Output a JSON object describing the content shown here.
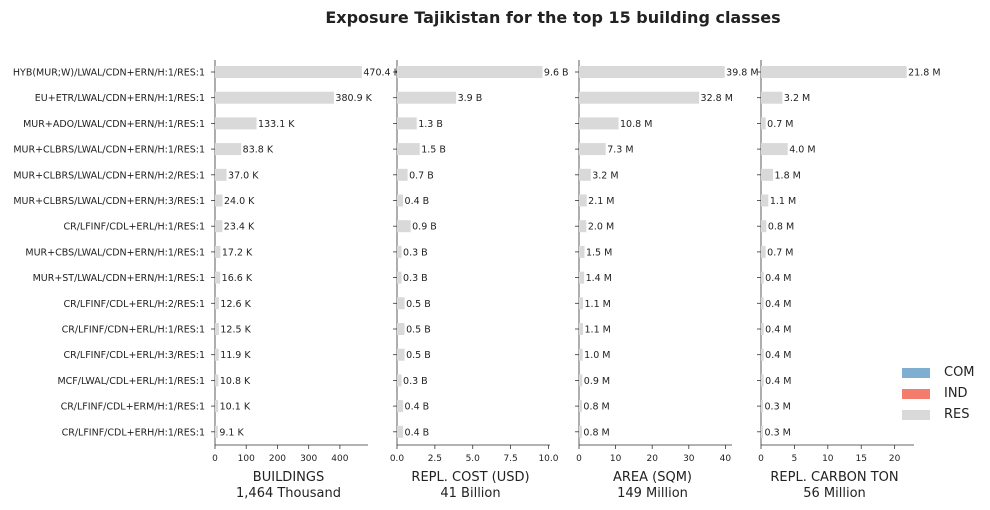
{
  "title": "Exposure Tajikistan for the top 15 building classes",
  "legend": [
    {
      "label": "COM",
      "color": "#7fafd0"
    },
    {
      "label": "IND",
      "color": "#f47c6c"
    },
    {
      "label": "RES",
      "color": "#d9d9d9"
    }
  ],
  "chart_data": {
    "type": "bar",
    "orientation": "horizontal",
    "categories": [
      "HYB(MUR;W)/LWAL/CDN+ERN/H:1/RES:1",
      "EU+ETR/LWAL/CDN+ERN/H:1/RES:1",
      "MUR+ADO/LWAL/CDN+ERN/H:1/RES:1",
      "MUR+CLBRS/LWAL/CDN+ERN/H:1/RES:1",
      "MUR+CLBRS/LWAL/CDN+ERN/H:2/RES:1",
      "MUR+CLBRS/LWAL/CDN+ERN/H:3/RES:1",
      "CR/LFINF/CDL+ERL/H:1/RES:1",
      "MUR+CBS/LWAL/CDN+ERN/H:1/RES:1",
      "MUR+ST/LWAL/CDN+ERN/H:1/RES:1",
      "CR/LFINF/CDL+ERL/H:2/RES:1",
      "CR/LFINF/CDN+ERL/H:1/RES:1",
      "CR/LFINF/CDL+ERL/H:3/RES:1",
      "MCF/LWAL/CDL+ERL/H:1/RES:1",
      "CR/LFINF/CDL+ERM/H:1/RES:1",
      "CR/LFINF/CDL+ERH/H:1/RES:1"
    ],
    "panels": [
      {
        "xlabel": "BUILDINGS",
        "total": "1,464 Thousand",
        "xlim": [
          0,
          490
        ],
        "ticks": [
          0,
          100,
          200,
          300,
          400
        ],
        "tick_labels": [
          "0",
          "100",
          "200",
          "300",
          "400"
        ],
        "series": "RES",
        "values": [
          470.4,
          380.9,
          133.1,
          83.8,
          37.0,
          24.0,
          23.4,
          17.2,
          16.6,
          12.6,
          12.5,
          11.9,
          10.8,
          10.1,
          9.1
        ],
        "labels": [
          "470.4 K",
          "380.9 K",
          "133.1 K",
          "83.8 K",
          "37.0 K",
          "24.0 K",
          "23.4 K",
          "17.2 K",
          "16.6 K",
          "12.6 K",
          "12.5 K",
          "11.9 K",
          "10.8 K",
          "10.1 K",
          "9.1 K"
        ]
      },
      {
        "xlabel": "REPL. COST (USD)",
        "total": "41 Billion",
        "xlim": [
          0,
          10.1
        ],
        "ticks": [
          0,
          2.5,
          5.0,
          7.5,
          10.0
        ],
        "tick_labels": [
          "0.0",
          "2.5",
          "5.0",
          "7.5",
          "10.0"
        ],
        "series": "RES",
        "values": [
          9.6,
          3.9,
          1.3,
          1.5,
          0.7,
          0.4,
          0.9,
          0.3,
          0.3,
          0.5,
          0.5,
          0.5,
          0.3,
          0.4,
          0.4
        ],
        "labels": [
          "9.6 B",
          "3.9 B",
          "1.3 B",
          "1.5 B",
          "0.7 B",
          "0.4 B",
          "0.9 B",
          "0.3 B",
          "0.3 B",
          "0.5 B",
          "0.5 B",
          "0.5 B",
          "0.3 B",
          "0.4 B",
          "0.4 B"
        ]
      },
      {
        "xlabel": "AREA (SQM)",
        "total": "149 Million",
        "xlim": [
          0,
          41.8
        ],
        "ticks": [
          0,
          10,
          20,
          30,
          40
        ],
        "tick_labels": [
          "0",
          "10",
          "20",
          "30",
          "40"
        ],
        "series": "RES",
        "values": [
          39.8,
          32.8,
          10.8,
          7.3,
          3.2,
          2.1,
          2.0,
          1.5,
          1.4,
          1.1,
          1.1,
          1.0,
          0.9,
          0.8,
          0.8
        ],
        "labels": [
          "39.8 M",
          "32.8 M",
          "10.8 M",
          "7.3 M",
          "3.2 M",
          "2.1 M",
          "2.0 M",
          "1.5 M",
          "1.4 M",
          "1.1 M",
          "1.1 M",
          "1.0 M",
          "0.9 M",
          "0.8 M",
          "0.8 M"
        ]
      },
      {
        "xlabel": "REPL. CARBON TON",
        "total": "56 Million",
        "xlim": [
          0,
          22.9
        ],
        "ticks": [
          0,
          5,
          10,
          15,
          20
        ],
        "tick_labels": [
          "0",
          "5",
          "10",
          "15",
          "20"
        ],
        "series": "RES",
        "values": [
          21.8,
          3.2,
          0.7,
          4.0,
          1.8,
          1.1,
          0.8,
          0.7,
          0.4,
          0.4,
          0.4,
          0.4,
          0.4,
          0.3,
          0.3
        ],
        "labels": [
          "21.8 M",
          "3.2 M",
          "0.7 M",
          "4.0 M",
          "1.8 M",
          "1.1 M",
          "0.8 M",
          "0.7 M",
          "0.4 M",
          "0.4 M",
          "0.4 M",
          "0.4 M",
          "0.4 M",
          "0.3 M",
          "0.3 M"
        ]
      }
    ]
  }
}
